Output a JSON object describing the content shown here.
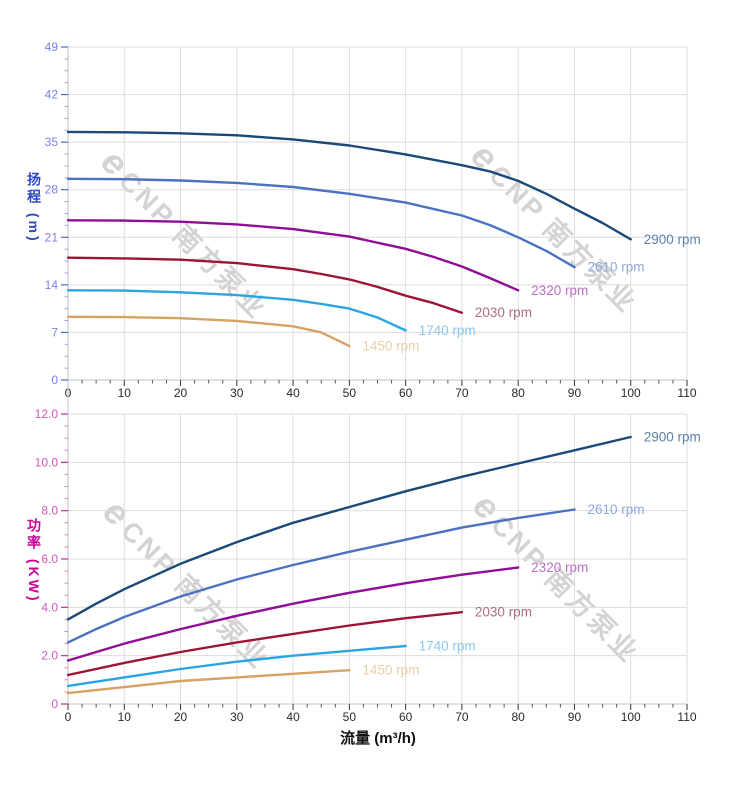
{
  "watermark": {
    "logo_letter": "e",
    "text": "CNP 南方泵业",
    "color": "#d3d3d3"
  },
  "chart_data": [
    {
      "id": "head-flow",
      "type": "line",
      "title": "",
      "xlabel": "",
      "ylabel": "扬程 (m)",
      "xlim": [
        0,
        110
      ],
      "ylim": [
        0,
        49
      ],
      "x_major_step": 10,
      "x_minor_step": 2.5,
      "y_major_step": 7,
      "y_minor_step": 1.75,
      "x_tick_labels": [
        "0",
        "10",
        "20",
        "30",
        "40",
        "50",
        "60",
        "70",
        "80",
        "90",
        "100",
        "110"
      ],
      "y_tick_labels": [
        "0",
        "7",
        "14",
        "21",
        "28",
        "35",
        "42",
        "49"
      ],
      "grid": true,
      "legend_position": "end-of-line",
      "ylabel_color": "#2d49c8",
      "y_tick_color": "#4f66cc",
      "y_tick_text_color": "#7d82e0",
      "series": [
        {
          "name": "2900 rpm",
          "color": "#1b4a7a",
          "label_color": "#5d81a8",
          "points": [
            [
              0,
              36.5
            ],
            [
              10,
              36.45
            ],
            [
              20,
              36.3
            ],
            [
              30,
              36.0
            ],
            [
              40,
              35.4
            ],
            [
              50,
              34.5
            ],
            [
              60,
              33.2
            ],
            [
              70,
              31.6
            ],
            [
              75,
              30.7
            ],
            [
              80,
              29.3
            ],
            [
              85,
              27.4
            ],
            [
              90,
              25.2
            ],
            [
              95,
              23.1
            ],
            [
              100,
              20.7
            ]
          ]
        },
        {
          "name": "2610 rpm",
          "color": "#4a72c0",
          "label_color": "#90a8da",
          "points": [
            [
              0,
              29.6
            ],
            [
              10,
              29.55
            ],
            [
              20,
              29.35
            ],
            [
              30,
              29.0
            ],
            [
              40,
              28.4
            ],
            [
              50,
              27.4
            ],
            [
              60,
              26.1
            ],
            [
              70,
              24.2
            ],
            [
              75,
              22.8
            ],
            [
              80,
              21.0
            ],
            [
              85,
              19.0
            ],
            [
              90,
              16.6
            ]
          ]
        },
        {
          "name": "2320 rpm",
          "color": "#8e0e96",
          "label_color": "#bc6ec6",
          "points": [
            [
              0,
              23.5
            ],
            [
              10,
              23.45
            ],
            [
              20,
              23.3
            ],
            [
              30,
              22.9
            ],
            [
              40,
              22.2
            ],
            [
              50,
              21.1
            ],
            [
              60,
              19.3
            ],
            [
              65,
              18.1
            ],
            [
              70,
              16.7
            ],
            [
              75,
              15.0
            ],
            [
              80,
              13.2
            ]
          ]
        },
        {
          "name": "2030 rpm",
          "color": "#9c1536",
          "label_color": "#b26a86",
          "points": [
            [
              0,
              18.0
            ],
            [
              10,
              17.9
            ],
            [
              20,
              17.7
            ],
            [
              30,
              17.2
            ],
            [
              40,
              16.3
            ],
            [
              45,
              15.6
            ],
            [
              50,
              14.8
            ],
            [
              55,
              13.7
            ],
            [
              60,
              12.4
            ],
            [
              65,
              11.3
            ],
            [
              70,
              9.9
            ]
          ]
        },
        {
          "name": "1740 rpm",
          "color": "#2aa5e1",
          "label_color": "#86c9ee",
          "points": [
            [
              0,
              13.2
            ],
            [
              10,
              13.15
            ],
            [
              20,
              12.9
            ],
            [
              30,
              12.5
            ],
            [
              40,
              11.8
            ],
            [
              45,
              11.2
            ],
            [
              50,
              10.5
            ],
            [
              55,
              9.2
            ],
            [
              60,
              7.3
            ]
          ]
        },
        {
          "name": "1450 rpm",
          "color": "#d7a263",
          "label_color": "#e9cfa6",
          "points": [
            [
              0,
              9.3
            ],
            [
              10,
              9.25
            ],
            [
              20,
              9.1
            ],
            [
              30,
              8.7
            ],
            [
              40,
              7.9
            ],
            [
              45,
              7.0
            ],
            [
              50,
              5.0
            ]
          ]
        }
      ]
    },
    {
      "id": "power-flow",
      "type": "line",
      "title": "",
      "xlabel": "流量 (m³/h)",
      "ylabel": "功率 (KW)",
      "xlim": [
        0,
        110
      ],
      "ylim": [
        0,
        12
      ],
      "x_major_step": 10,
      "x_minor_step": 2.5,
      "y_major_step": 2,
      "y_minor_step": 0.5,
      "x_tick_labels": [
        "0",
        "10",
        "20",
        "30",
        "40",
        "50",
        "60",
        "70",
        "80",
        "90",
        "100",
        "110"
      ],
      "y_tick_labels": [
        "0",
        "2.0",
        "4.0",
        "6.0",
        "8.0",
        "10.0",
        "12.0"
      ],
      "grid": true,
      "legend_position": "end-of-line",
      "ylabel_color": "#cb0098",
      "y_tick_color": "#c22b9b",
      "y_tick_text_color": "#d058ba",
      "series": [
        {
          "name": "2900 rpm",
          "color": "#1b4a7a",
          "label_color": "#5d81a8",
          "points": [
            [
              0,
              3.5
            ],
            [
              5,
              4.15
            ],
            [
              10,
              4.75
            ],
            [
              20,
              5.8
            ],
            [
              30,
              6.7
            ],
            [
              40,
              7.5
            ],
            [
              50,
              8.15
            ],
            [
              60,
              8.8
            ],
            [
              70,
              9.4
            ],
            [
              80,
              9.95
            ],
            [
              90,
              10.5
            ],
            [
              100,
              11.05
            ]
          ]
        },
        {
          "name": "2610 rpm",
          "color": "#4a72c0",
          "label_color": "#90a8da",
          "points": [
            [
              0,
              2.55
            ],
            [
              5,
              3.1
            ],
            [
              10,
              3.6
            ],
            [
              20,
              4.45
            ],
            [
              30,
              5.15
            ],
            [
              40,
              5.75
            ],
            [
              50,
              6.3
            ],
            [
              60,
              6.8
            ],
            [
              70,
              7.3
            ],
            [
              80,
              7.7
            ],
            [
              90,
              8.05
            ]
          ]
        },
        {
          "name": "2320 rpm",
          "color": "#8e0e96",
          "label_color": "#bc6ec6",
          "points": [
            [
              0,
              1.8
            ],
            [
              10,
              2.5
            ],
            [
              20,
              3.1
            ],
            [
              30,
              3.65
            ],
            [
              40,
              4.15
            ],
            [
              50,
              4.6
            ],
            [
              60,
              5.0
            ],
            [
              70,
              5.35
            ],
            [
              80,
              5.65
            ]
          ]
        },
        {
          "name": "2030 rpm",
          "color": "#9c1536",
          "label_color": "#b26a86",
          "points": [
            [
              0,
              1.2
            ],
            [
              10,
              1.7
            ],
            [
              20,
              2.15
            ],
            [
              30,
              2.55
            ],
            [
              40,
              2.9
            ],
            [
              50,
              3.25
            ],
            [
              60,
              3.55
            ],
            [
              70,
              3.8
            ]
          ]
        },
        {
          "name": "1740 rpm",
          "color": "#2aa5e1",
          "label_color": "#86c9ee",
          "points": [
            [
              0,
              0.75
            ],
            [
              10,
              1.1
            ],
            [
              20,
              1.45
            ],
            [
              30,
              1.75
            ],
            [
              40,
              2.0
            ],
            [
              50,
              2.2
            ],
            [
              60,
              2.4
            ]
          ]
        },
        {
          "name": "1450 rpm",
          "color": "#d7a263",
          "label_color": "#e9cfa6",
          "points": [
            [
              0,
              0.45
            ],
            [
              10,
              0.7
            ],
            [
              20,
              0.95
            ],
            [
              30,
              1.1
            ],
            [
              40,
              1.25
            ],
            [
              50,
              1.4
            ]
          ]
        }
      ]
    }
  ]
}
